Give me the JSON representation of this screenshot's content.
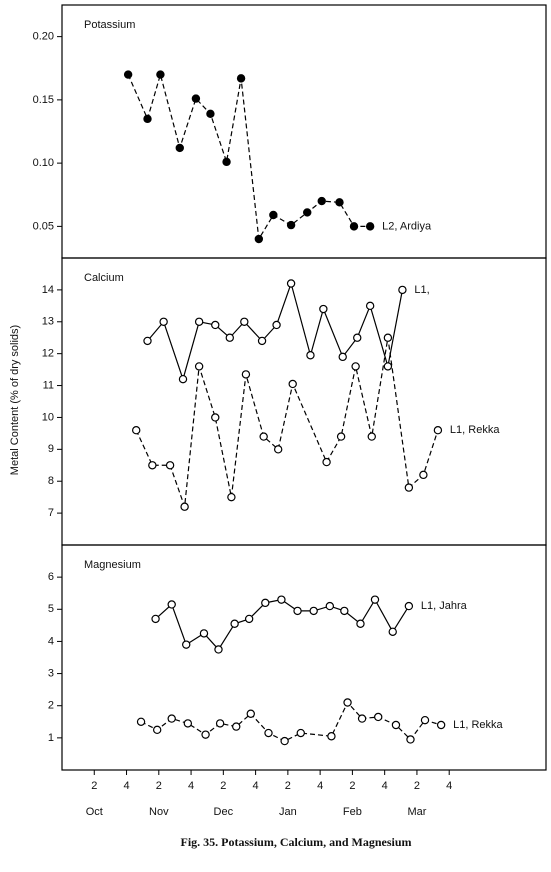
{
  "ylabel": "Metal Content (% of dry solids)",
  "caption": "Fig. 35. Potassium, Calcium, and Magnesium",
  "chart_data": [
    {
      "type": "line",
      "title": "Potassium",
      "xlim": [
        0,
        30
      ],
      "ylim": [
        0.025,
        0.225
      ],
      "yticks": [
        {
          "value": 0.2,
          "label": "0.20"
        },
        0.15,
        {
          "value": 0.1,
          "label": "0.10"
        },
        0.05
      ],
      "series": [
        {
          "name": "L2, Ardiya",
          "color": "#000000",
          "dashed": true,
          "marker": "filled",
          "x": [
            4.1,
            5.3,
            6.1,
            7.3,
            8.3,
            9.2,
            10.2,
            11.1,
            12.2,
            13.1,
            14.2,
            15.2,
            16.1,
            17.2,
            18.1,
            19.1
          ],
          "values": [
            0.17,
            0.135,
            0.17,
            0.112,
            0.151,
            0.139,
            0.101,
            0.167,
            0.04,
            0.059,
            0.051,
            0.061,
            0.07,
            0.069,
            0.05,
            0.05
          ]
        }
      ]
    },
    {
      "type": "line",
      "title": "Calcium",
      "xlim": [
        0,
        30
      ],
      "ylim": [
        6,
        15
      ],
      "yticks": [
        7,
        8,
        9,
        10,
        11,
        12,
        13,
        14
      ],
      "series": [
        {
          "name": "L1,",
          "color": "#000000",
          "dashed": false,
          "marker": "open",
          "x": [
            5.3,
            6.3,
            7.5,
            8.5,
            9.5,
            10.4,
            11.3,
            12.4,
            13.3,
            14.2,
            15.4,
            16.2,
            17.4,
            18.3,
            19.1,
            20.2,
            21.1
          ],
          "values": [
            12.4,
            13,
            11.2,
            13,
            12.9,
            12.5,
            13,
            12.4,
            12.9,
            14.2,
            11.95,
            13.4,
            11.9,
            12.5,
            13.5,
            11.6,
            14
          ]
        },
        {
          "name": "L1, Rekka",
          "color": "#000000",
          "dashed": true,
          "marker": "open",
          "x": [
            4.6,
            5.6,
            6.7,
            7.6,
            8.5,
            9.5,
            10.5,
            11.4,
            12.5,
            13.4,
            14.3,
            16.4,
            17.3,
            18.2,
            19.2,
            20.2,
            21.5,
            22.4,
            23.3
          ],
          "values": [
            9.6,
            8.5,
            8.5,
            7.2,
            11.6,
            10,
            7.5,
            11.35,
            9.4,
            9,
            11.05,
            8.6,
            9.4,
            11.6,
            9.4,
            12.5,
            7.8,
            8.2,
            9.6
          ]
        }
      ]
    },
    {
      "type": "line",
      "title": "Magnesium",
      "xlim": [
        0,
        30
      ],
      "ylim": [
        0,
        7
      ],
      "yticks": [
        1,
        2,
        3,
        4,
        5,
        6
      ],
      "xticks": [
        {
          "value": 2,
          "label": "2"
        },
        {
          "value": 4,
          "label": "4"
        },
        {
          "value": 6,
          "label": "2"
        },
        {
          "value": 8,
          "label": "4"
        },
        {
          "value": 10,
          "label": "2"
        },
        {
          "value": 12,
          "label": "4"
        },
        {
          "value": 14,
          "label": "2"
        },
        {
          "value": 16,
          "label": "4"
        },
        {
          "value": 18,
          "label": "2"
        },
        {
          "value": 20,
          "label": "4"
        },
        {
          "value": 22,
          "label": "2"
        },
        {
          "value": 24,
          "label": "4"
        }
      ],
      "month_labels": [
        "Oct",
        "Nov",
        "Dec",
        "Jan",
        "Feb",
        "Mar"
      ],
      "series": [
        {
          "name": "L1, Jahra",
          "color": "#000000",
          "dashed": false,
          "marker": "open",
          "x": [
            5.8,
            6.8,
            7.7,
            8.8,
            9.7,
            10.7,
            11.6,
            12.6,
            13.6,
            14.6,
            15.6,
            16.6,
            17.5,
            18.5,
            19.4,
            20.5,
            21.5
          ],
          "values": [
            4.7,
            5.15,
            3.9,
            4.25,
            3.75,
            4.55,
            4.7,
            5.2,
            5.3,
            4.95,
            4.95,
            5.1,
            4.95,
            4.55,
            5.3,
            4.3,
            5.1
          ]
        },
        {
          "name": "L1, Rekka",
          "color": "#000000",
          "dashed": true,
          "marker": "open",
          "x": [
            4.9,
            5.9,
            6.8,
            7.8,
            8.9,
            9.8,
            10.8,
            11.7,
            12.8,
            13.8,
            14.8,
            16.7,
            17.7,
            18.6,
            19.6,
            20.7,
            21.6,
            22.5,
            23.5
          ],
          "values": [
            1.5,
            1.25,
            1.6,
            1.45,
            1.1,
            1.45,
            1.35,
            1.75,
            1.15,
            0.9,
            1.15,
            1.05,
            2.1,
            1.6,
            1.65,
            1.4,
            0.95,
            1.55,
            1.4
          ]
        }
      ]
    }
  ]
}
